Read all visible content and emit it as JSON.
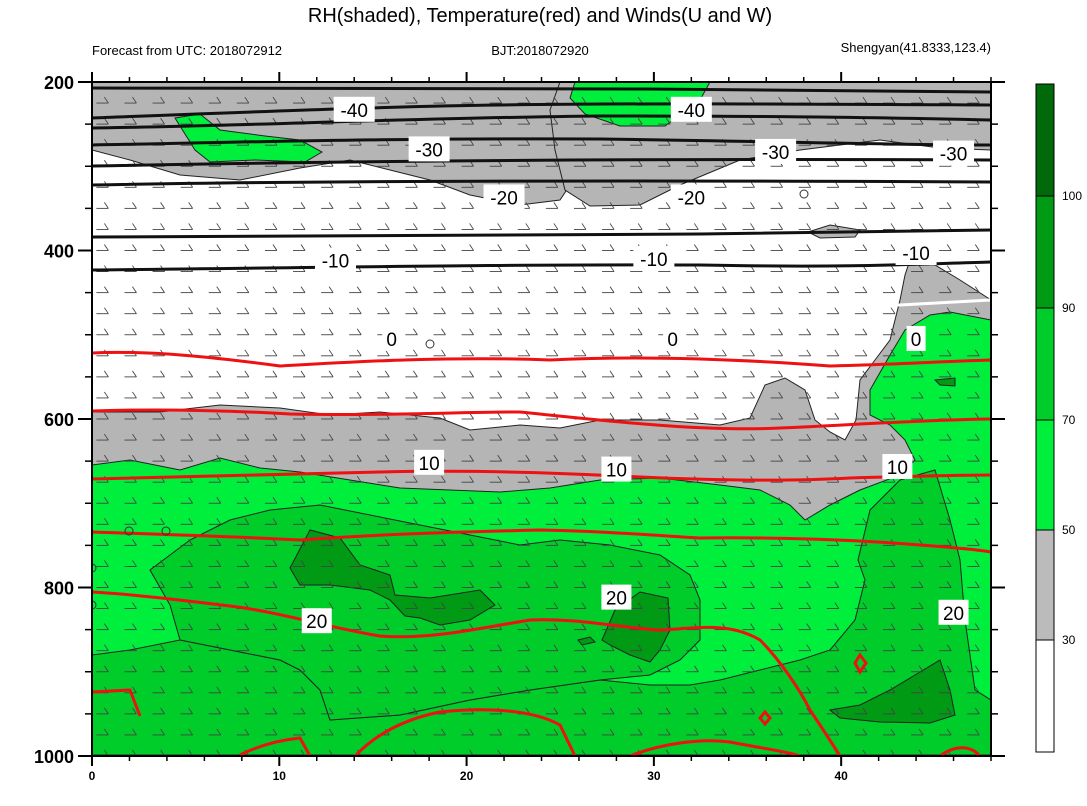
{
  "chart_data": {
    "type": "contour",
    "title": "RH(shaded), Temperature(red) and Winds(U and W)",
    "subtitle_left": "Forecast from UTC: 2018072912",
    "subtitle_center": "BJT:2018072920",
    "subtitle_right": "Shengyan(41.8333,123.4)",
    "xlim": [
      0,
      48
    ],
    "ylim": [
      1000,
      200
    ],
    "x_ticks": [
      0,
      10,
      20,
      30,
      40
    ],
    "y_ticks": [
      200,
      400,
      600,
      800,
      1000
    ],
    "y_tick_labels": [
      "200",
      "400",
      "600",
      "800",
      "1000"
    ],
    "x_tick_labels": [
      "0",
      "10",
      "20",
      "30",
      "40"
    ],
    "colorbar": {
      "levels": [
        30,
        50,
        70,
        90,
        100
      ],
      "level_labels": [
        "30",
        "50",
        "70",
        "90",
        "100"
      ],
      "colors": [
        "#ffffff",
        "#bbbbbb",
        "#00ee3c",
        "#00cc2a",
        "#009a15",
        "#006a0a"
      ]
    },
    "temperature_labels": [
      {
        "text": "-40",
        "x": 14,
        "p": 233
      },
      {
        "text": "-40",
        "x": 32,
        "p": 233
      },
      {
        "text": "-30",
        "x": 18,
        "p": 280
      },
      {
        "text": "-30",
        "x": 36.5,
        "p": 283
      },
      {
        "text": "-30",
        "x": 46,
        "p": 285
      },
      {
        "text": "-20",
        "x": 22,
        "p": 337
      },
      {
        "text": "-20",
        "x": 32,
        "p": 337
      },
      {
        "text": "-10",
        "x": 13,
        "p": 412
      },
      {
        "text": "-10",
        "x": 30,
        "p": 410
      },
      {
        "text": "-10",
        "x": 44,
        "p": 403
      },
      {
        "text": "0",
        "x": 16,
        "p": 505
      },
      {
        "text": "0",
        "x": 31,
        "p": 505
      },
      {
        "text": "0",
        "x": 44,
        "p": 505
      },
      {
        "text": "10",
        "x": 18,
        "p": 652
      },
      {
        "text": "10",
        "x": 28,
        "p": 660
      },
      {
        "text": "10",
        "x": 43,
        "p": 657
      },
      {
        "text": "20",
        "x": 12,
        "p": 840
      },
      {
        "text": "20",
        "x": 28,
        "p": 812
      },
      {
        "text": "20",
        "x": 46,
        "p": 830
      }
    ]
  }
}
